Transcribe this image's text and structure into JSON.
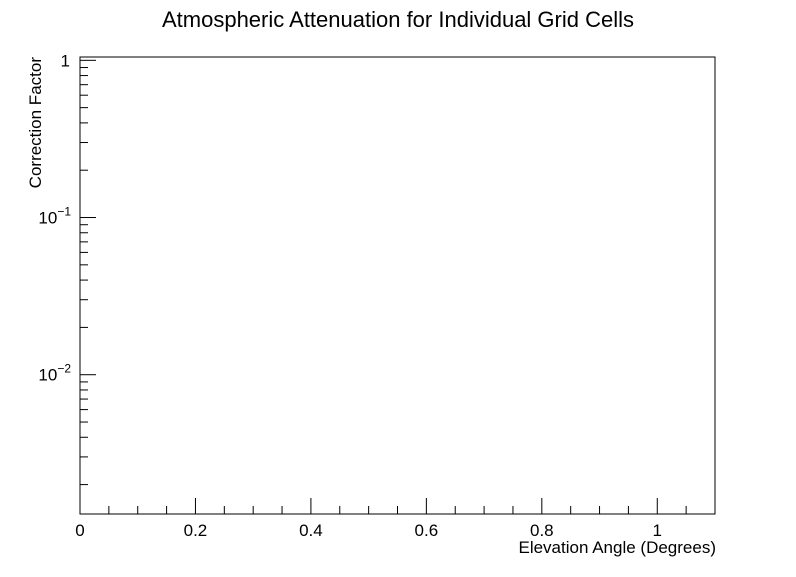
{
  "chart_data": {
    "type": "line",
    "title": "Atmospheric Attenuation for Individual Grid Cells",
    "xlabel": "Elevation Angle (Degrees)",
    "ylabel": "Correction Factor",
    "xlim": [
      0,
      1.1
    ],
    "ylim": [
      0.0013,
      1.05
    ],
    "yscale": "log",
    "grid": false,
    "series": [],
    "x_ticks": {
      "major": [
        0,
        0.2,
        0.4,
        0.6,
        0.8,
        1.0
      ],
      "labels": [
        "0",
        "0.2",
        "0.4",
        "0.6",
        "0.8",
        "1"
      ],
      "minor_step": 0.05
    },
    "y_ticks": {
      "major": [
        0.01,
        0.1,
        1
      ],
      "labels": [
        {
          "base": "10",
          "exp": "−2"
        },
        {
          "base": "10",
          "exp": "−1"
        },
        {
          "base": "1",
          "exp": ""
        }
      ]
    }
  }
}
